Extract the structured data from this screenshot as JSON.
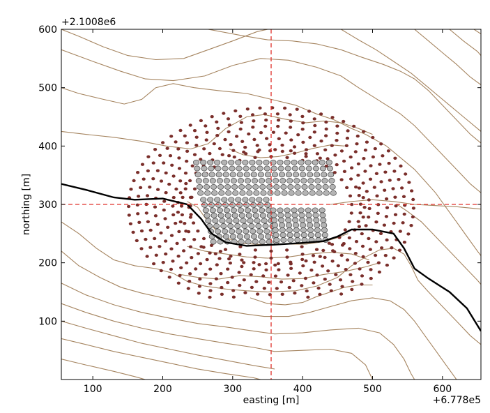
{
  "chart_data": {
    "type": "scatter",
    "title": "",
    "xlabel": "easting [m]",
    "ylabel": "northing [m]",
    "x_offset_label": "+6.778e5",
    "y_offset_label": "+2.1008e6",
    "xlim": [
      55,
      655
    ],
    "ylim": [
      0,
      600
    ],
    "x_ticks": [
      100,
      200,
      300,
      400,
      500,
      600
    ],
    "y_ticks": [
      100,
      200,
      300,
      400,
      500,
      600
    ],
    "grid": false,
    "crosshair": {
      "x": 355,
      "y": 300,
      "color": "#e0302a"
    },
    "colors": {
      "contour": "#a5845f",
      "outer_points": "#7a2e2a",
      "inner_fill": "#b4b4b4",
      "inner_stroke": "#444444",
      "profile_line": "#000000"
    },
    "profile_line": [
      [
        55,
        335
      ],
      [
        90,
        325
      ],
      [
        130,
        312
      ],
      [
        160,
        308
      ],
      [
        200,
        310
      ],
      [
        235,
        300
      ],
      [
        255,
        275
      ],
      [
        270,
        250
      ],
      [
        290,
        235
      ],
      [
        320,
        229
      ],
      [
        360,
        231
      ],
      [
        400,
        234
      ],
      [
        430,
        237
      ],
      [
        450,
        245
      ],
      [
        470,
        257
      ],
      [
        500,
        257
      ],
      [
        530,
        250
      ],
      [
        545,
        225
      ],
      [
        560,
        190
      ],
      [
        580,
        173
      ],
      [
        610,
        150
      ],
      [
        635,
        122
      ],
      [
        655,
        83
      ]
    ],
    "contours": [
      [
        [
          55,
          600
        ],
        [
          80,
          588
        ],
        [
          115,
          570
        ],
        [
          150,
          555
        ],
        [
          190,
          548
        ],
        [
          230,
          550
        ],
        [
          265,
          565
        ],
        [
          300,
          580
        ],
        [
          335,
          596
        ],
        [
          350,
          600
        ]
      ],
      [
        [
          55,
          565
        ],
        [
          100,
          545
        ],
        [
          140,
          528
        ],
        [
          175,
          515
        ],
        [
          215,
          512
        ],
        [
          260,
          520
        ],
        [
          300,
          538
        ],
        [
          340,
          550
        ],
        [
          380,
          547
        ],
        [
          420,
          535
        ],
        [
          455,
          520
        ],
        [
          480,
          500
        ],
        [
          500,
          485
        ]
      ],
      [
        [
          55,
          500
        ],
        [
          80,
          490
        ],
        [
          115,
          480
        ],
        [
          145,
          472
        ],
        [
          170,
          480
        ],
        [
          190,
          500
        ],
        [
          215,
          507
        ],
        [
          245,
          500
        ],
        [
          280,
          495
        ],
        [
          320,
          490
        ],
        [
          355,
          480
        ],
        [
          390,
          470
        ],
        [
          420,
          455
        ],
        [
          445,
          445
        ],
        [
          470,
          430
        ],
        [
          490,
          420
        ]
      ],
      [
        [
          55,
          425
        ],
        [
          90,
          420
        ],
        [
          130,
          415
        ],
        [
          170,
          408
        ],
        [
          205,
          400
        ],
        [
          240,
          395
        ],
        [
          265,
          404
        ],
        [
          290,
          430
        ],
        [
          320,
          450
        ],
        [
          345,
          454
        ],
        [
          375,
          446
        ],
        [
          405,
          440
        ],
        [
          430,
          443
        ],
        [
          455,
          440
        ],
        [
          480,
          430
        ],
        [
          500,
          420
        ]
      ],
      [
        [
          235,
          305
        ],
        [
          250,
          295
        ],
        [
          265,
          270
        ],
        [
          285,
          245
        ],
        [
          315,
          233
        ],
        [
          345,
          231
        ],
        [
          375,
          232
        ],
        [
          405,
          232
        ],
        [
          430,
          236
        ],
        [
          450,
          243
        ],
        [
          465,
          250
        ]
      ],
      [
        [
          55,
          270
        ],
        [
          80,
          250
        ],
        [
          105,
          225
        ],
        [
          130,
          205
        ],
        [
          160,
          195
        ],
        [
          190,
          190
        ],
        [
          215,
          182
        ],
        [
          235,
          168
        ],
        [
          260,
          160
        ],
        [
          290,
          155
        ],
        [
          320,
          152
        ],
        [
          350,
          150
        ]
      ],
      [
        [
          55,
          220
        ],
        [
          80,
          195
        ],
        [
          110,
          175
        ],
        [
          140,
          158
        ],
        [
          170,
          148
        ],
        [
          200,
          140
        ],
        [
          230,
          132
        ],
        [
          260,
          125
        ],
        [
          290,
          118
        ],
        [
          320,
          112
        ],
        [
          345,
          108
        ]
      ],
      [
        [
          55,
          165
        ],
        [
          90,
          145
        ],
        [
          130,
          128
        ],
        [
          170,
          115
        ],
        [
          210,
          105
        ],
        [
          250,
          96
        ],
        [
          290,
          90
        ],
        [
          330,
          83
        ],
        [
          360,
          78
        ]
      ],
      [
        [
          55,
          130
        ],
        [
          90,
          115
        ],
        [
          130,
          100
        ],
        [
          170,
          88
        ],
        [
          210,
          78
        ],
        [
          250,
          70
        ],
        [
          290,
          62
        ],
        [
          330,
          55
        ],
        [
          360,
          48
        ]
      ],
      [
        [
          55,
          100
        ],
        [
          90,
          88
        ],
        [
          130,
          75
        ],
        [
          170,
          62
        ],
        [
          210,
          52
        ],
        [
          250,
          42
        ],
        [
          290,
          33
        ],
        [
          330,
          24
        ],
        [
          360,
          18
        ]
      ],
      [
        [
          55,
          70
        ],
        [
          90,
          60
        ],
        [
          130,
          48
        ],
        [
          170,
          38
        ],
        [
          210,
          28
        ],
        [
          250,
          18
        ],
        [
          290,
          10
        ],
        [
          330,
          3
        ],
        [
          340,
          0
        ]
      ],
      [
        [
          55,
          35
        ],
        [
          90,
          25
        ],
        [
          130,
          14
        ],
        [
          160,
          5
        ],
        [
          175,
          0
        ]
      ],
      [
        [
          265,
          600
        ],
        [
          310,
          590
        ],
        [
          350,
          582
        ],
        [
          385,
          580
        ],
        [
          420,
          575
        ],
        [
          455,
          565
        ],
        [
          485,
          552
        ],
        [
          515,
          540
        ],
        [
          540,
          528
        ],
        [
          560,
          515
        ],
        [
          580,
          495
        ],
        [
          600,
          470
        ],
        [
          620,
          445
        ],
        [
          640,
          420
        ],
        [
          655,
          405
        ]
      ],
      [
        [
          455,
          600
        ],
        [
          480,
          582
        ],
        [
          505,
          565
        ],
        [
          530,
          545
        ],
        [
          555,
          525
        ],
        [
          580,
          500
        ],
        [
          605,
          475
        ],
        [
          630,
          450
        ],
        [
          650,
          430
        ],
        [
          655,
          425
        ]
      ],
      [
        [
          560,
          600
        ],
        [
          580,
          580
        ],
        [
          600,
          560
        ],
        [
          620,
          540
        ],
        [
          640,
          518
        ],
        [
          655,
          505
        ]
      ],
      [
        [
          610,
          600
        ],
        [
          630,
          580
        ],
        [
          650,
          562
        ],
        [
          655,
          555
        ]
      ],
      [
        [
          645,
          600
        ],
        [
          655,
          592
        ]
      ],
      [
        [
          490,
          420
        ],
        [
          520,
          400
        ],
        [
          540,
          380
        ],
        [
          560,
          360
        ],
        [
          575,
          340
        ],
        [
          590,
          320
        ],
        [
          605,
          295
        ],
        [
          620,
          270
        ],
        [
          635,
          245
        ],
        [
          650,
          220
        ],
        [
          655,
          212
        ]
      ],
      [
        [
          500,
          485
        ],
        [
          520,
          470
        ],
        [
          540,
          455
        ],
        [
          560,
          435
        ],
        [
          580,
          410
        ],
        [
          600,
          385
        ],
        [
          620,
          360
        ],
        [
          640,
          335
        ],
        [
          655,
          320
        ]
      ],
      [
        [
          350,
          150
        ],
        [
          390,
          152
        ],
        [
          420,
          160
        ],
        [
          450,
          175
        ],
        [
          470,
          195
        ],
        [
          490,
          210
        ],
        [
          510,
          222
        ],
        [
          530,
          225
        ],
        [
          545,
          215
        ],
        [
          555,
          195
        ],
        [
          565,
          170
        ],
        [
          580,
          150
        ],
        [
          600,
          125
        ],
        [
          620,
          100
        ],
        [
          640,
          75
        ],
        [
          655,
          60
        ]
      ],
      [
        [
          345,
          108
        ],
        [
          380,
          108
        ],
        [
          410,
          115
        ],
        [
          440,
          125
        ],
        [
          470,
          135
        ],
        [
          500,
          140
        ],
        [
          525,
          135
        ],
        [
          545,
          120
        ],
        [
          560,
          100
        ],
        [
          575,
          75
        ],
        [
          590,
          50
        ],
        [
          605,
          25
        ],
        [
          620,
          0
        ]
      ],
      [
        [
          360,
          78
        ],
        [
          400,
          80
        ],
        [
          440,
          85
        ],
        [
          480,
          88
        ],
        [
          510,
          80
        ],
        [
          530,
          60
        ],
        [
          545,
          35
        ],
        [
          555,
          10
        ],
        [
          560,
          0
        ]
      ],
      [
        [
          360,
          48
        ],
        [
          400,
          50
        ],
        [
          440,
          52
        ],
        [
          470,
          45
        ],
        [
          490,
          25
        ],
        [
          500,
          0
        ]
      ],
      [
        [
          225,
          180
        ],
        [
          250,
          175
        ],
        [
          280,
          172
        ],
        [
          310,
          178
        ],
        [
          340,
          176
        ],
        [
          370,
          172
        ],
        [
          400,
          173
        ],
        [
          430,
          180
        ],
        [
          460,
          185
        ],
        [
          490,
          193
        ],
        [
          510,
          200
        ]
      ],
      [
        [
          235,
          228
        ],
        [
          260,
          220
        ],
        [
          290,
          215
        ],
        [
          320,
          210
        ],
        [
          350,
          208
        ],
        [
          380,
          210
        ],
        [
          410,
          215
        ],
        [
          440,
          218
        ],
        [
          470,
          215
        ],
        [
          495,
          205
        ]
      ],
      [
        [
          295,
          395
        ],
        [
          315,
          385
        ],
        [
          340,
          380
        ],
        [
          365,
          382
        ],
        [
          390,
          388
        ],
        [
          415,
          396
        ],
        [
          440,
          402
        ],
        [
          460,
          400
        ]
      ],
      [
        [
          325,
          140
        ],
        [
          350,
          130
        ],
        [
          375,
          128
        ],
        [
          400,
          132
        ],
        [
          420,
          142
        ],
        [
          440,
          150
        ],
        [
          460,
          158
        ],
        [
          480,
          162
        ],
        [
          500,
          162
        ]
      ],
      [
        [
          535,
          300
        ],
        [
          550,
          288
        ],
        [
          570,
          270
        ],
        [
          590,
          245
        ],
        [
          610,
          220
        ],
        [
          630,
          195
        ],
        [
          650,
          170
        ],
        [
          655,
          163
        ]
      ],
      [
        [
          440,
          300
        ],
        [
          470,
          305
        ],
        [
          500,
          308
        ],
        [
          530,
          305
        ],
        [
          560,
          300
        ],
        [
          590,
          298
        ],
        [
          620,
          296
        ],
        [
          655,
          292
        ]
      ]
    ]
  }
}
